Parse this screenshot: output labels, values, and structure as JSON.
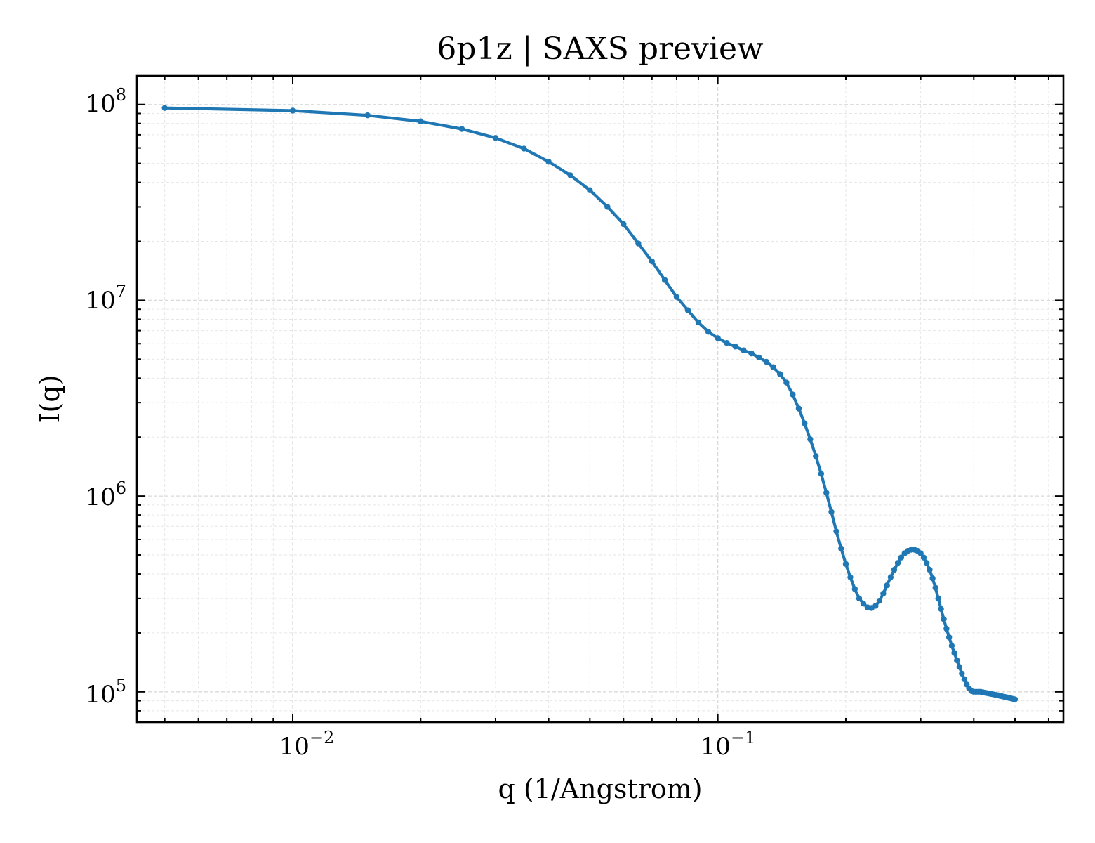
{
  "chart_data": {
    "type": "line",
    "title": "6p1z | SAXS preview",
    "xlabel": "q (1/Angstrom)",
    "ylabel": "I(q)",
    "xscale": "log",
    "yscale": "log",
    "xlim": [
      0.0043,
      0.65
    ],
    "ylim": [
      70000,
      140000000
    ],
    "grid": true,
    "line_color": "#1f77b4",
    "x_ticks": [
      {
        "base": "10",
        "exp": "−2",
        "value": 0.01
      },
      {
        "base": "10",
        "exp": "−1",
        "value": 0.1
      }
    ],
    "y_ticks": [
      {
        "base": "10",
        "exp": "5",
        "value": 100000
      },
      {
        "base": "10",
        "exp": "6",
        "value": 1000000
      },
      {
        "base": "10",
        "exp": "7",
        "value": 10000000
      },
      {
        "base": "10",
        "exp": "8",
        "value": 100000000
      }
    ],
    "series": [
      {
        "x": [
          0.005,
          0.01,
          0.015,
          0.02,
          0.025,
          0.03,
          0.035,
          0.04,
          0.045,
          0.05,
          0.055,
          0.06,
          0.065,
          0.07,
          0.075,
          0.08,
          0.085,
          0.09,
          0.095,
          0.1,
          0.105,
          0.11,
          0.115,
          0.12,
          0.125,
          0.13,
          0.135,
          0.14,
          0.145,
          0.15,
          0.155,
          0.16,
          0.165,
          0.17,
          0.175,
          0.18,
          0.185,
          0.19,
          0.195,
          0.2,
          0.205,
          0.21,
          0.215,
          0.22,
          0.225,
          0.23,
          0.235,
          0.24,
          0.245,
          0.25,
          0.255,
          0.26,
          0.265,
          0.27,
          0.275,
          0.28,
          0.285,
          0.29,
          0.295,
          0.3,
          0.305,
          0.31,
          0.315,
          0.32,
          0.325,
          0.33,
          0.335,
          0.34,
          0.345,
          0.35,
          0.355,
          0.36,
          0.365,
          0.37,
          0.375,
          0.38,
          0.385,
          0.39,
          0.395,
          0.4,
          0.405,
          0.41,
          0.415,
          0.42,
          0.425,
          0.43,
          0.435,
          0.44,
          0.445,
          0.45,
          0.455,
          0.46,
          0.465,
          0.47,
          0.475,
          0.48,
          0.485,
          0.49,
          0.495,
          0.5
        ],
        "y": [
          96000000,
          93000000,
          88000000,
          82000000,
          75000000,
          67500000,
          59500000,
          51000000,
          43500000,
          36500000,
          30000000,
          24500000,
          19500000,
          15800000,
          12700000,
          10400000,
          8900000,
          7700000,
          6900000,
          6400000,
          6050000,
          5800000,
          5550000,
          5350000,
          5100000,
          4850000,
          4550000,
          4200000,
          3800000,
          3300000,
          2800000,
          2350000,
          1950000,
          1600000,
          1300000,
          1040000,
          830000,
          660000,
          540000,
          450000,
          385000,
          335000,
          300000,
          282000,
          270000,
          268000,
          275000,
          292000,
          318000,
          350000,
          385000,
          420000,
          455000,
          485000,
          510000,
          525000,
          532000,
          532000,
          525000,
          510000,
          485000,
          455000,
          420000,
          380000,
          340000,
          300000,
          265000,
          235000,
          210000,
          190000,
          172000,
          158000,
          145000,
          134000,
          124000,
          116000,
          109000,
          104000,
          101000,
          100000,
          100000,
          100000,
          100000,
          99500,
          99000,
          98500,
          98000,
          97500,
          97000,
          96500,
          96000,
          95500,
          95000,
          94500,
          94000,
          93500,
          93000,
          92500,
          92000,
          91500
        ]
      }
    ]
  }
}
